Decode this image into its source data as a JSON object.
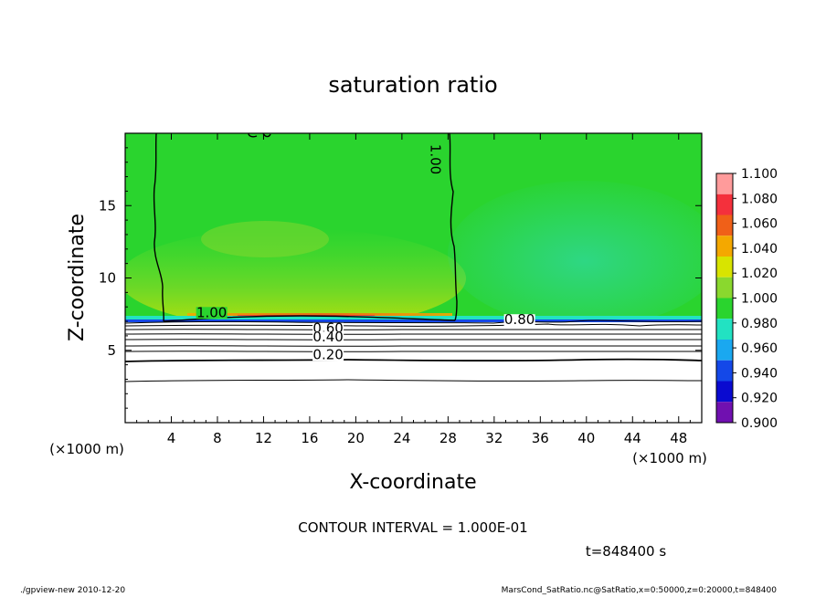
{
  "chart_data": {
    "type": "heatmap",
    "title": "saturation ratio",
    "xlabel": "X-coordinate",
    "ylabel": "Z-coordinate",
    "x_unit_label": "(×1000 m)",
    "z_unit_label": "(×1000 m)",
    "xlim": [
      0,
      50
    ],
    "zlim": [
      0,
      20
    ],
    "x_ticks": [
      4,
      8,
      12,
      16,
      20,
      24,
      28,
      32,
      36,
      40,
      44,
      48
    ],
    "z_ticks": [
      5,
      10,
      15
    ],
    "colorbar": {
      "levels": [
        1.1,
        1.08,
        1.06,
        1.04,
        1.02,
        1.0,
        0.98,
        0.96,
        0.94,
        0.92,
        0.9
      ],
      "labels": [
        "1.100",
        "1.080",
        "1.060",
        "1.040",
        "1.020",
        "1.000",
        "0.980",
        "0.960",
        "0.940",
        "0.920",
        "0.900"
      ],
      "colors": [
        "#ff9b9b",
        "#f4303c",
        "#f06018",
        "#f4a800",
        "#d8e400",
        "#8ad82e",
        "#2ad42e",
        "#22e2c2",
        "#1aa8f0",
        "#1448e8",
        "#0a0ad0",
        "#7010b0"
      ]
    },
    "contour_labels": [
      {
        "text": "1.00",
        "x": 26.9,
        "z": 18.2,
        "rotate": 90
      },
      {
        "text": "1.00",
        "x": 7.5,
        "z": 7.3,
        "rotate": 0
      },
      {
        "text": "0.80",
        "x": 34.2,
        "z": 6.8,
        "rotate": 0
      },
      {
        "text": "0.60",
        "x": 17.6,
        "z": 6.2,
        "rotate": 0
      },
      {
        "text": "0.40",
        "x": 17.6,
        "z": 5.6,
        "rotate": 0
      },
      {
        "text": "0.20",
        "x": 17.6,
        "z": 4.4,
        "rotate": 0
      }
    ],
    "contour_interval_label": "CONTOUR INTERVAL = 1.000E-01",
    "time_label": "t=848400 s"
  },
  "footer": {
    "left": "./gpview-new   2010-12-20",
    "right": "MarsCond_SatRatio.nc@SatRatio,x=0:50000,z=0:20000,t=848400"
  }
}
